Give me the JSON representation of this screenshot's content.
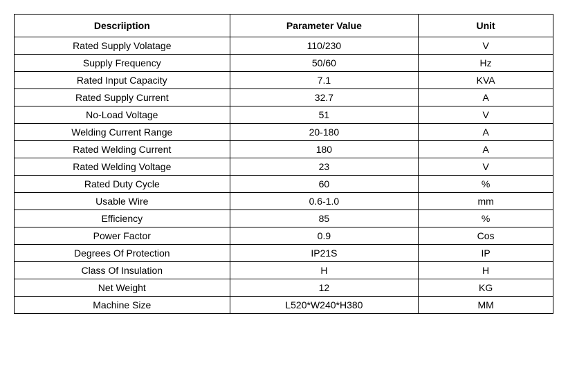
{
  "table": {
    "columns": [
      {
        "label": "Descriiption",
        "width_pct": 40
      },
      {
        "label": "Parameter Value",
        "width_pct": 35
      },
      {
        "label": "Unit",
        "width_pct": 25
      }
    ],
    "rows": [
      {
        "desc": "Rated Supply Volatage",
        "value": "110/230",
        "unit": "V"
      },
      {
        "desc": "Supply Frequency",
        "value": "50/60",
        "unit": "Hz"
      },
      {
        "desc": "Rated Input Capacity",
        "value": "7.1",
        "unit": "KVA"
      },
      {
        "desc": "Rated Supply Current",
        "value": "32.7",
        "unit": "A"
      },
      {
        "desc": "No-Load Voltage",
        "value": "51",
        "unit": "V"
      },
      {
        "desc": "Welding Current Range",
        "value": "20-180",
        "unit": "A"
      },
      {
        "desc": "Rated Welding Current",
        "value": "180",
        "unit": "A"
      },
      {
        "desc": "Rated Welding Voltage",
        "value": "23",
        "unit": "V"
      },
      {
        "desc": "Rated Duty Cycle",
        "value": "60",
        "unit": "%"
      },
      {
        "desc": "Usable Wire",
        "value": "0.6-1.0",
        "unit": "mm"
      },
      {
        "desc": "Efficiency",
        "value": "85",
        "unit": "%"
      },
      {
        "desc": "Power Factor",
        "value": "0.9",
        "unit": "Cos"
      },
      {
        "desc": "Degrees Of Protection",
        "value": "IP21S",
        "unit": "IP"
      },
      {
        "desc": "Class Of Insulation",
        "value": "H",
        "unit": "H"
      },
      {
        "desc": "Net Weight",
        "value": "12",
        "unit": "KG"
      },
      {
        "desc": "Machine Size",
        "value": "L520*W240*H380",
        "unit": "MM"
      }
    ],
    "style": {
      "border_color": "#000000",
      "background_color": "#ffffff",
      "font_family": "Arial, sans-serif",
      "header_fontsize": 14,
      "cell_fontsize": 14,
      "text_color": "#000000",
      "header_weight": "bold",
      "alignment": "center"
    }
  }
}
